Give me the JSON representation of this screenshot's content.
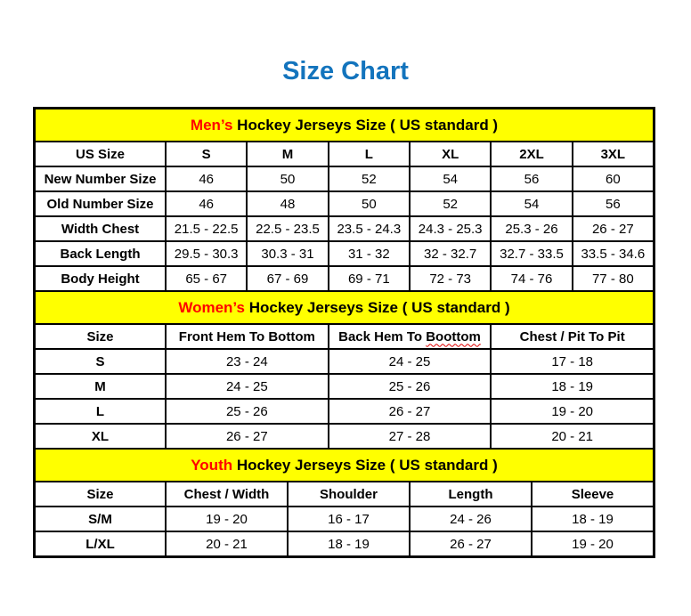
{
  "page": {
    "title": "Size Chart"
  },
  "colors": {
    "title_blue": "#1374BD",
    "band_yellow": "#FFFF00",
    "highlight_red": "#FF0000",
    "border_black": "#000000",
    "squiggle_red": "#E00000"
  },
  "sections": [
    {
      "id": "mens",
      "heading_highlight": "Men’s",
      "heading_rest": " Hockey Jerseys Size ( US standard )",
      "columns": [
        "US Size",
        "S",
        "M",
        "L",
        "XL",
        "2XL",
        "3XL"
      ],
      "rows": [
        {
          "label": "New Number Size",
          "values": [
            "46",
            "50",
            "52",
            "54",
            "56",
            "60"
          ]
        },
        {
          "label": "Old Number Size",
          "values": [
            "46",
            "48",
            "50",
            "52",
            "54",
            "56"
          ]
        },
        {
          "label": "Width Chest",
          "values": [
            "21.5 - 22.5",
            "22.5 - 23.5",
            "23.5 - 24.3",
            "24.3 - 25.3",
            "25.3 - 26",
            "26 - 27"
          ]
        },
        {
          "label": "Back Length",
          "values": [
            "29.5 - 30.3",
            "30.3 - 31",
            "31 - 32",
            "32 - 32.7",
            "32.7 - 33.5",
            "33.5 - 34.6"
          ]
        },
        {
          "label": "Body Height",
          "values": [
            "65 - 67",
            "67 - 69",
            "69 - 71",
            "72 - 73",
            "74 - 76",
            "77 - 80"
          ]
        }
      ]
    },
    {
      "id": "womens",
      "heading_highlight": "Women’s",
      "heading_rest": " Hockey Jerseys Size ( US standard )",
      "columns": [
        "Size",
        "Front Hem To Bottom",
        "Back Hem To Boottom",
        "Chest / Pit To Pit"
      ],
      "misspelled": {
        "prefix": "Back Hem To ",
        "word": "Boottom"
      },
      "rows": [
        {
          "label": "S",
          "values": [
            "23 - 24",
            "24 - 25",
            "17 - 18"
          ]
        },
        {
          "label": "M",
          "values": [
            "24 - 25",
            "25 - 26",
            "18 - 19"
          ]
        },
        {
          "label": "L",
          "values": [
            "25 - 26",
            "26 - 27",
            "19 - 20"
          ]
        },
        {
          "label": "XL",
          "values": [
            "26 - 27",
            "27 - 28",
            "20 - 21"
          ]
        }
      ]
    },
    {
      "id": "youth",
      "heading_highlight": "Youth",
      "heading_rest": " Hockey Jerseys Size ( US standard )",
      "columns": [
        "Size",
        "Chest / Width",
        "Shoulder",
        "Length",
        "Sleeve"
      ],
      "rows": [
        {
          "label": "S/M",
          "values": [
            "19 - 20",
            "16 - 17",
            "24 - 26",
            "18 - 19"
          ]
        },
        {
          "label": "L/XL",
          "values": [
            "20 - 21",
            "18 - 19",
            "26 - 27",
            "19 - 20"
          ]
        }
      ]
    }
  ]
}
